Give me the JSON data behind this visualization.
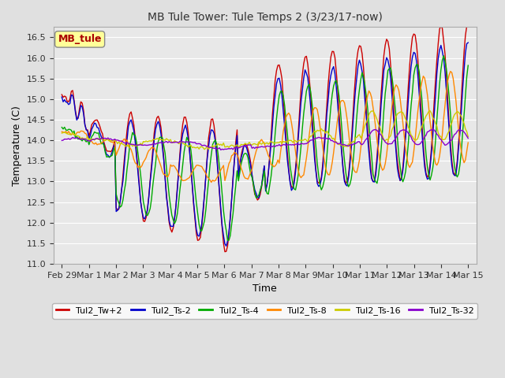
{
  "title": "MB Tule Tower: Tule Temps 2 (3/23/17-now)",
  "xlabel": "Time",
  "ylabel": "Temperature (C)",
  "ylim": [
    11.0,
    16.75
  ],
  "yticks": [
    11.0,
    11.5,
    12.0,
    12.5,
    13.0,
    13.5,
    14.0,
    14.5,
    15.0,
    15.5,
    16.0,
    16.5
  ],
  "background_color": "#e0e0e0",
  "plot_bg_color": "#e8e8e8",
  "legend_label": "MB_tule",
  "legend_text_color": "#aa0000",
  "series_colors": {
    "Tul2_Tw+2": "#cc0000",
    "Tul2_Ts-2": "#0000cc",
    "Tul2_Ts-4": "#00aa00",
    "Tul2_Ts-8": "#ff8800",
    "Tul2_Ts-16": "#cccc00",
    "Tul2_Ts-32": "#8800cc"
  },
  "x_tick_labels": [
    "Feb 29",
    "Mar 1",
    "Mar 2",
    "Mar 3",
    "Mar 4",
    "Mar 5",
    "Mar 6",
    "Mar 7",
    "Mar 8",
    "Mar 9",
    "Mar 10",
    "Mar 11",
    "Mar 12",
    "Mar 13",
    "Mar 14",
    "Mar 15"
  ]
}
